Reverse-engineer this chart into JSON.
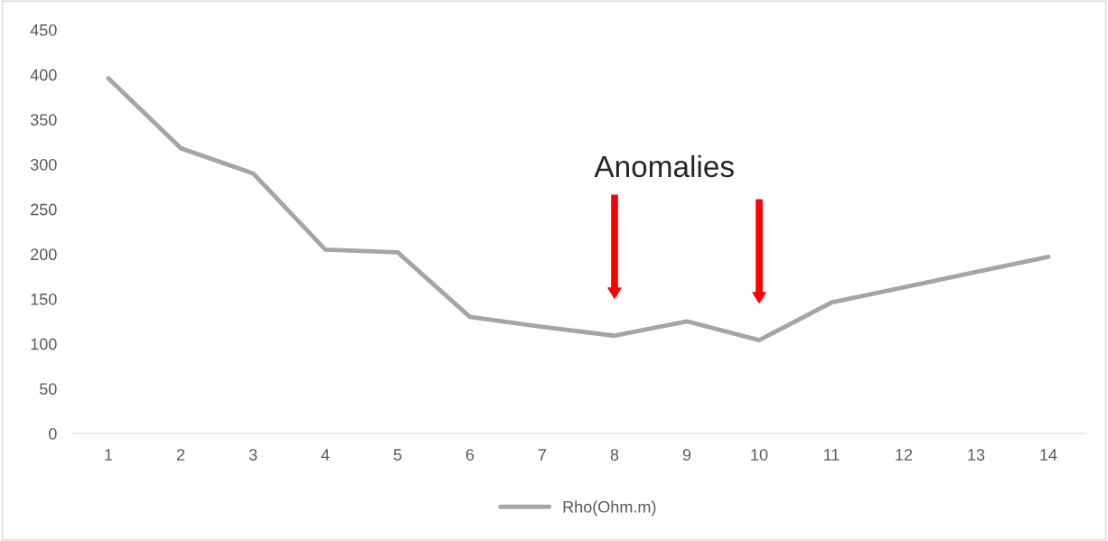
{
  "chart_data": {
    "type": "line",
    "categories": [
      "1",
      "2",
      "3",
      "4",
      "5",
      "6",
      "7",
      "8",
      "9",
      "10",
      "11",
      "12",
      "13",
      "14"
    ],
    "series": [
      {
        "name": "Rho(Ohm.m)",
        "color": "#a5a5a5",
        "values": [
          396,
          318,
          290,
          205,
          202,
          130,
          119,
          109,
          125,
          104,
          146,
          163,
          180,
          197
        ]
      }
    ],
    "ylim": [
      0,
      450
    ],
    "yticks": [
      0,
      50,
      100,
      150,
      200,
      250,
      300,
      350,
      400,
      450
    ],
    "grid": false,
    "legend": "bottom",
    "marker": "none",
    "line_style": "solid",
    "annotations": [
      "Anomalies"
    ]
  }
}
